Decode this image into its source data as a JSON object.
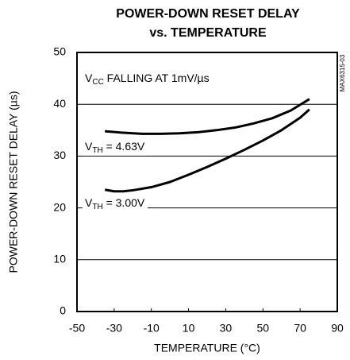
{
  "chart_data": {
    "type": "line",
    "title": [
      "POWER-DOWN RESET DELAY",
      "vs. TEMPERATURE"
    ],
    "x_label": "TEMPERATURE (°C)",
    "y_label": "POWER-DOWN RESET DELAY (µs)",
    "side_note": "MAX6315-03",
    "annotation": {
      "base": "V",
      "sub": "CC",
      "rest": " FALLING AT 1mV/µs"
    },
    "xlim": [
      -50,
      90
    ],
    "xticks": [
      -50,
      -30,
      -10,
      10,
      30,
      50,
      70,
      90
    ],
    "ylim": [
      0,
      50
    ],
    "yticks": [
      0,
      10,
      20,
      30,
      40,
      50
    ],
    "grid": true,
    "series": [
      {
        "label": {
          "base": "V",
          "sub": "TH",
          "rest": " = 4.63V"
        },
        "color": "#000000",
        "x": [
          -35,
          -25,
          -15,
          -5,
          5,
          15,
          25,
          35,
          45,
          55,
          65,
          75
        ],
        "values": [
          34.8,
          34.5,
          34.3,
          34.3,
          34.4,
          34.6,
          35.0,
          35.5,
          36.3,
          37.3,
          38.8,
          41.0
        ]
      },
      {
        "label": {
          "base": "V",
          "sub": "TH",
          "rest": " = 3.00V"
        },
        "color": "#000000",
        "x": [
          -35,
          -30,
          -25,
          -20,
          -10,
          0,
          10,
          20,
          30,
          40,
          50,
          60,
          70,
          75
        ],
        "values": [
          23.5,
          23.2,
          23.2,
          23.4,
          24.0,
          25.0,
          26.4,
          27.9,
          29.5,
          31.2,
          33.0,
          35.0,
          37.4,
          39.0
        ]
      }
    ]
  }
}
